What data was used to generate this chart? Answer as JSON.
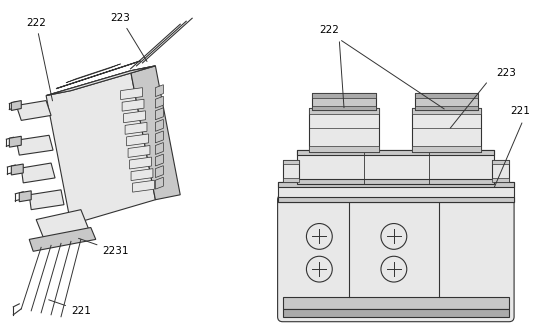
{
  "bg_color": "#ffffff",
  "line_color": "#333333",
  "fill_light": "#e8e8e8",
  "fill_mid": "#c8c8c8",
  "fill_dark": "#aaaaaa",
  "figsize": [
    5.34,
    3.35
  ],
  "dpi": 100
}
